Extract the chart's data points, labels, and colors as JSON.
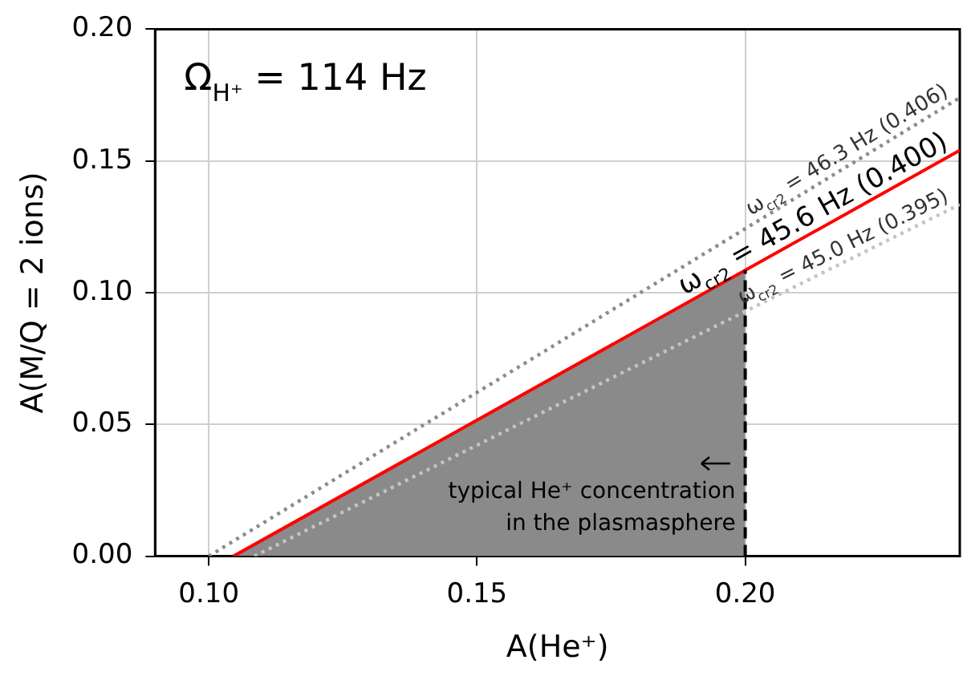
{
  "chart_data": {
    "type": "line",
    "xlabel": "A(He⁺)",
    "ylabel": "A(M/Q = 2 ions)",
    "xlim": [
      0.09,
      0.24
    ],
    "ylim": [
      0,
      0.2
    ],
    "xticks": [
      {
        "value": 0.1,
        "label": "0.10"
      },
      {
        "value": 0.15,
        "label": "0.15"
      },
      {
        "value": 0.2,
        "label": "0.20"
      }
    ],
    "yticks": [
      {
        "value": 0,
        "label": "0.00"
      },
      {
        "value": 0.05,
        "label": "0.05"
      },
      {
        "value": 0.1,
        "label": "0.10"
      },
      {
        "value": 0.15,
        "label": "0.15"
      },
      {
        "value": 0.2,
        "label": "0.20"
      }
    ],
    "grid": true,
    "legend": false,
    "marker": "none",
    "annotations": [
      "Ω$_{H⁺}$ = 114 Hz",
      {
        "text": "typical He⁺ concentration\nin the plasmasphere",
        "x": 0.2,
        "y": 0.022
      }
    ],
    "series": [
      {
        "type": "area",
        "color": "#8a8a8a",
        "x": [
          0.1046,
          0.2
        ],
        "values": [
          0,
          0.1085
        ]
      },
      {
        "name": "ω$_{cr2}$ = 46.3 Hz (0.406)",
        "type": "line",
        "color": "#8c8c8c",
        "line_style": "dotted",
        "x": [
          0.1,
          0.24
        ],
        "values": [
          0,
          0.174
        ]
      },
      {
        "name": "ω$_{cr2}$ = 45.6 Hz (0.400)",
        "type": "line",
        "color": "#ff0000",
        "line_style": "solid",
        "x": [
          0.1046,
          0.24
        ],
        "values": [
          0,
          0.154
        ]
      },
      {
        "name": "ω$_{cr2}$ = 45.0 Hz (0.395)",
        "type": "line",
        "color": "#c4c4c4",
        "line_style": "dotted",
        "x": [
          0.1085,
          0.24
        ],
        "values": [
          0,
          0.1335
        ]
      },
      {
        "type": "line",
        "color": "#000000",
        "line_style": "dashed",
        "x": [
          0.2,
          0.2
        ],
        "values": [
          0,
          0.1085
        ]
      }
    ]
  }
}
